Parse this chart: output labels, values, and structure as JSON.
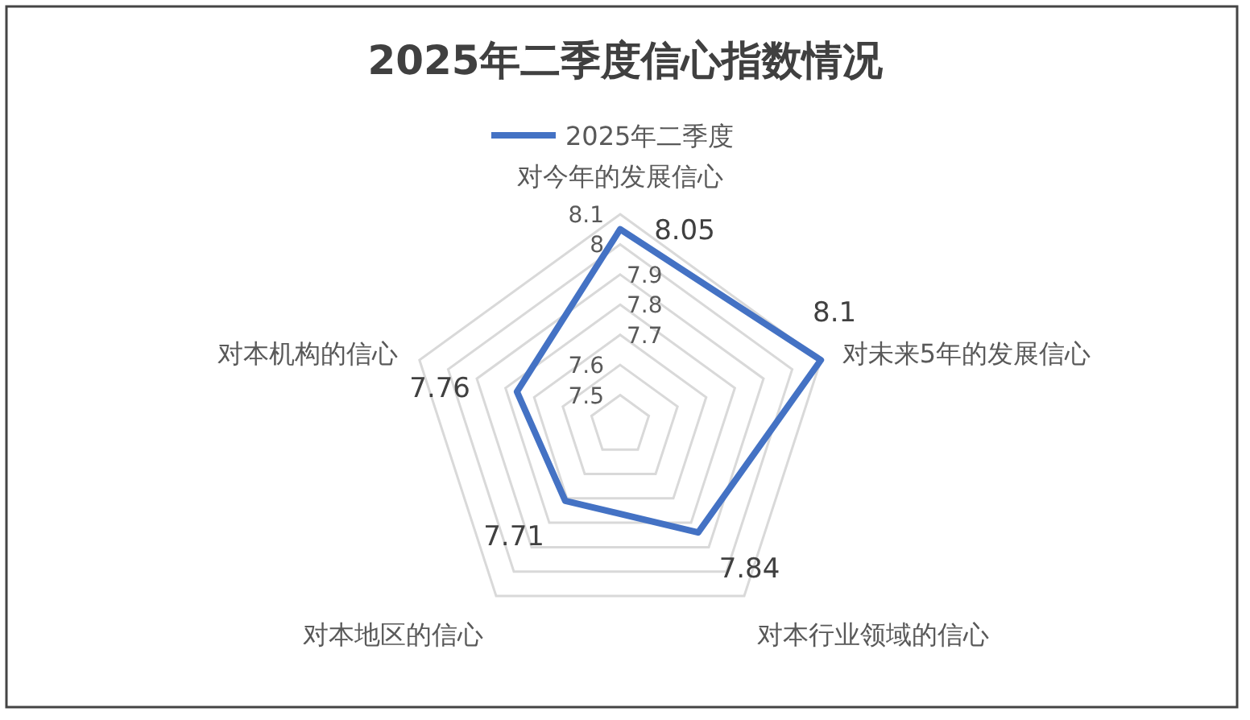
{
  "chart_data": {
    "type": "radar",
    "title": "2025年二季度信心指数情况",
    "categories": [
      "对今年的发展信心",
      "对未来5年的发展信心",
      "对本行业领域的信心",
      "对本地区的信心",
      "对本机构的信心"
    ],
    "series": [
      {
        "name": "2025年二季度",
        "color": "#4472c4",
        "values": [
          8.05,
          8.1,
          7.84,
          7.71,
          7.76
        ]
      }
    ],
    "ylim": [
      7.4,
      8.1
    ],
    "yticks": [
      7.5,
      7.6,
      7.7,
      7.8,
      7.9,
      8,
      8.1
    ],
    "grid": true,
    "legend": "top",
    "data_labels": true
  }
}
